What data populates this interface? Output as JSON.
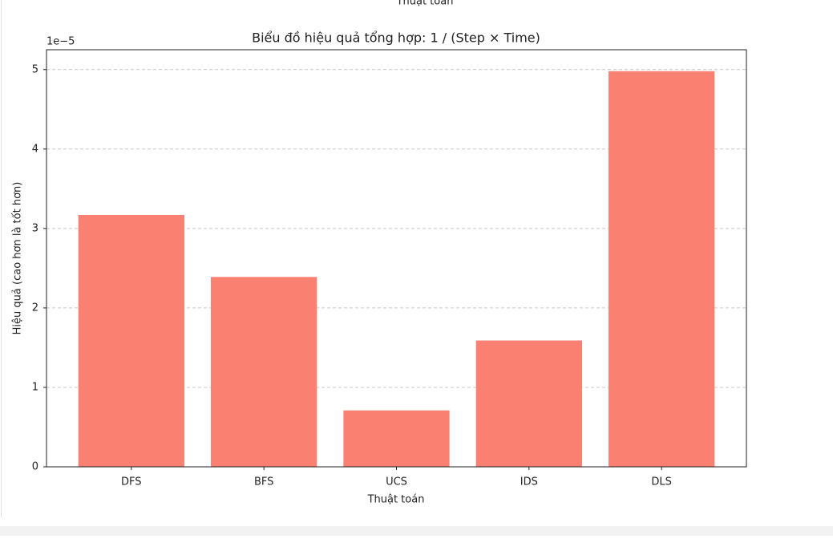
{
  "top_caption": "Thuật toán",
  "chart_data": {
    "type": "bar",
    "title": "Biểu đồ hiệu quả tổng hợp: 1 / (Step × Time)",
    "xlabel": "Thuật toán",
    "ylabel": "Hiệu quả (cao hơn là tốt hơn)",
    "offset_label": "1e−5",
    "categories": [
      "DFS",
      "BFS",
      "UCS",
      "IDS",
      "DLS"
    ],
    "values": [
      3.17,
      2.39,
      0.71,
      1.59,
      4.98
    ],
    "color": "#fa8072",
    "ylim": [
      0,
      5.25
    ],
    "yticks": [
      0,
      1,
      2,
      3,
      4,
      5
    ],
    "grid": true
  }
}
